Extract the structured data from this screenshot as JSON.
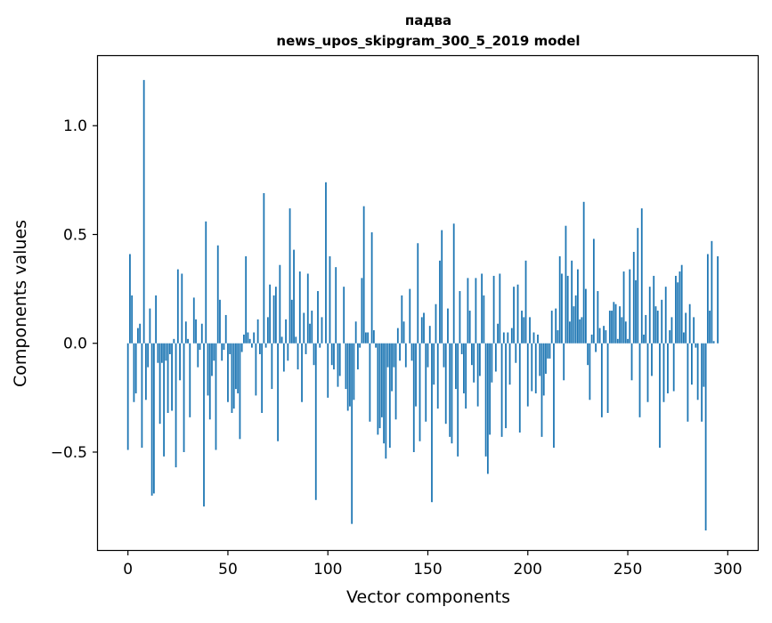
{
  "chart_data": {
    "type": "bar",
    "title": "падва",
    "subtitle": "news_upos_skipgram_300_5_2019 model",
    "xlabel": "Vector components",
    "ylabel": "Components values",
    "xlim": [
      -15,
      315
    ],
    "ylim": [
      -0.95,
      1.32
    ],
    "xticks": [
      0,
      50,
      100,
      150,
      200,
      250,
      300
    ],
    "xtick_labels": [
      "0",
      "50",
      "100",
      "150",
      "200",
      "250",
      "300"
    ],
    "yticks": [
      -0.5,
      0.0,
      0.5,
      1.0
    ],
    "ytick_labels": [
      "−0.5",
      "0.0",
      "0.5",
      "1.0"
    ],
    "bar_color": "#1f77b4",
    "grid": false,
    "series": [
      {
        "values": [
          -0.49,
          0.41,
          0.22,
          -0.27,
          -0.23,
          0.07,
          0.09,
          -0.48,
          1.21,
          -0.26,
          -0.11,
          0.16,
          -0.7,
          -0.69,
          0.22,
          -0.09,
          -0.37,
          -0.09,
          -0.52,
          -0.08,
          -0.32,
          -0.05,
          -0.31,
          0.02,
          -0.57,
          0.34,
          -0.17,
          0.32,
          -0.5,
          0.1,
          0.02,
          -0.34,
          0.0,
          0.21,
          0.11,
          -0.11,
          -0.03,
          0.09,
          -0.75,
          0.56,
          -0.24,
          -0.35,
          -0.15,
          -0.08,
          -0.49,
          0.45,
          0.2,
          -0.08,
          -0.03,
          0.13,
          -0.27,
          -0.05,
          -0.32,
          -0.3,
          -0.21,
          -0.23,
          -0.44,
          -0.04,
          0.04,
          0.4,
          0.05,
          0.02,
          -0.02,
          0.05,
          -0.24,
          0.11,
          -0.05,
          -0.32,
          0.69,
          -0.02,
          0.12,
          0.27,
          -0.21,
          0.22,
          0.26,
          -0.45,
          0.36,
          0.03,
          -0.13,
          0.11,
          -0.08,
          0.62,
          0.2,
          0.43,
          0.03,
          -0.12,
          0.33,
          -0.27,
          0.14,
          -0.05,
          0.32,
          0.09,
          0.15,
          -0.1,
          -0.72,
          0.24,
          -0.02,
          0.12,
          0.0,
          0.74,
          -0.25,
          0.4,
          -0.1,
          -0.12,
          0.35,
          -0.2,
          -0.15,
          0.0,
          0.26,
          -0.21,
          -0.31,
          -0.29,
          -0.83,
          -0.26,
          0.1,
          -0.12,
          -0.02,
          0.3,
          0.63,
          0.05,
          0.05,
          -0.36,
          0.51,
          0.06,
          -0.02,
          -0.42,
          -0.39,
          -0.34,
          -0.46,
          -0.53,
          -0.11,
          -0.48,
          -0.22,
          -0.11,
          -0.35,
          0.07,
          -0.08,
          0.22,
          0.1,
          -0.11,
          0.0,
          0.25,
          -0.08,
          -0.5,
          -0.29,
          0.46,
          -0.45,
          0.12,
          0.14,
          -0.36,
          -0.11,
          0.08,
          -0.73,
          -0.19,
          0.18,
          -0.3,
          0.38,
          0.52,
          -0.11,
          -0.37,
          0.16,
          -0.43,
          -0.46,
          0.55,
          -0.21,
          -0.52,
          0.24,
          -0.05,
          -0.23,
          -0.3,
          0.3,
          0.15,
          -0.1,
          -0.18,
          0.3,
          -0.29,
          -0.15,
          0.32,
          0.22,
          -0.52,
          -0.6,
          -0.42,
          -0.18,
          0.31,
          -0.13,
          0.09,
          0.32,
          -0.43,
          0.05,
          -0.39,
          0.05,
          -0.19,
          0.07,
          0.26,
          -0.09,
          0.27,
          -0.41,
          0.15,
          0.12,
          0.38,
          -0.29,
          0.12,
          -0.22,
          0.05,
          -0.23,
          0.04,
          -0.15,
          -0.43,
          -0.24,
          -0.14,
          -0.07,
          -0.07,
          0.15,
          -0.48,
          0.16,
          0.06,
          0.4,
          0.32,
          -0.17,
          0.54,
          0.31,
          0.1,
          0.38,
          0.17,
          0.22,
          0.34,
          0.11,
          0.12,
          0.65,
          0.25,
          -0.1,
          -0.26,
          0.04,
          0.48,
          -0.04,
          0.24,
          0.07,
          -0.34,
          0.08,
          0.06,
          -0.32,
          0.15,
          0.15,
          0.19,
          0.18,
          0.02,
          0.17,
          0.12,
          0.33,
          0.1,
          0.02,
          0.34,
          -0.17,
          0.42,
          0.29,
          0.53,
          -0.34,
          0.62,
          0.04,
          0.13,
          -0.27,
          0.26,
          -0.15,
          0.31,
          0.17,
          0.15,
          -0.48,
          0.2,
          -0.27,
          0.26,
          -0.23,
          0.06,
          0.12,
          -0.22,
          0.31,
          0.28,
          0.33,
          0.36,
          0.05,
          0.14,
          -0.36,
          0.18,
          -0.19,
          0.12,
          -0.02,
          -0.26,
          0.0,
          -0.36,
          -0.2,
          -0.86,
          0.41,
          0.15,
          0.47,
          0.01,
          0.0,
          0.4
        ]
      }
    ]
  }
}
